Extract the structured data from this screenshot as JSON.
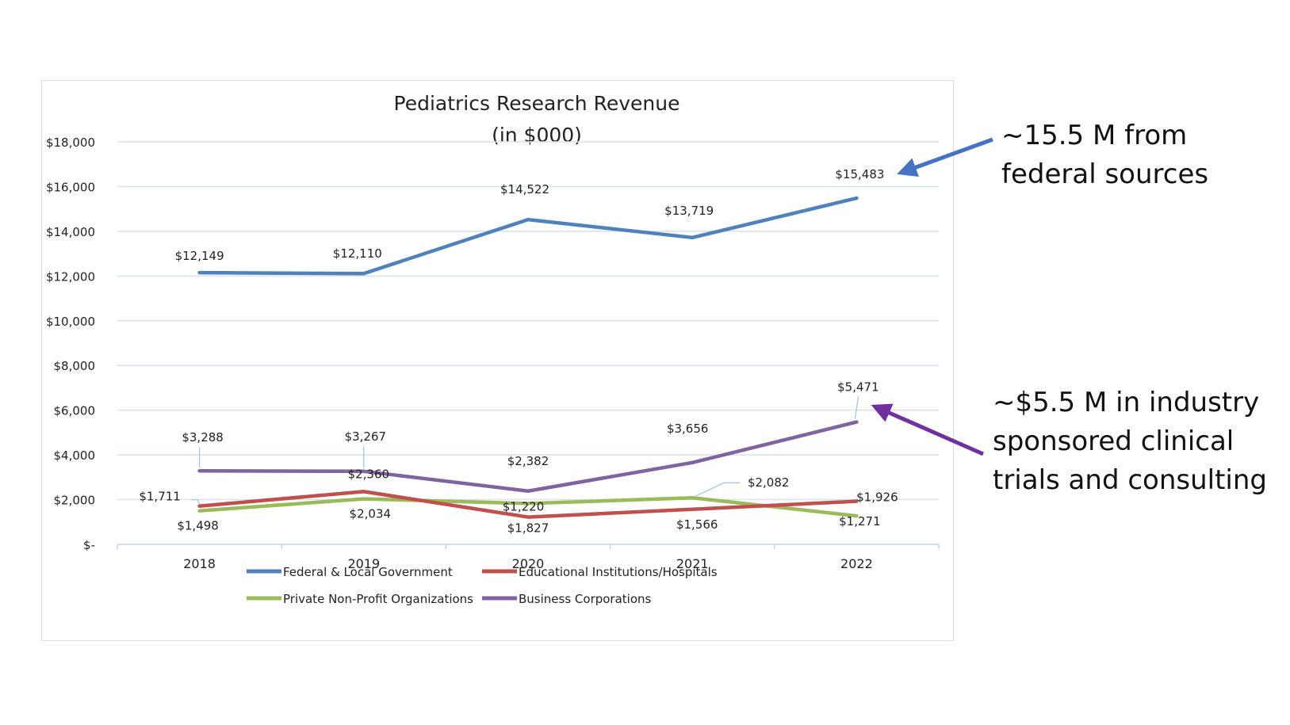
{
  "chart_data": {
    "type": "line",
    "title": "Pediatrics Research Revenue",
    "subtitle": "(in $000)",
    "xlabel": "",
    "ylabel": "",
    "categories": [
      "2018",
      "2019",
      "2020",
      "2021",
      "2022"
    ],
    "ylim": [
      0,
      18000
    ],
    "y_ticks": [
      0,
      2000,
      4000,
      6000,
      8000,
      10000,
      12000,
      14000,
      16000,
      18000
    ],
    "y_tick_labels": [
      "$-",
      "$2,000",
      "$4,000",
      "$6,000",
      "$8,000",
      "$10,000",
      "$12,000",
      "$14,000",
      "$16,000",
      "$18,000"
    ],
    "grid": true,
    "legend_position": "bottom",
    "series": [
      {
        "name": "Federal & Local Government",
        "color": "#4f81bd",
        "values": [
          12149,
          12110,
          14522,
          13719,
          15483
        ],
        "labels": [
          "$12,149",
          "$12,110",
          "$14,522",
          "$13,719",
          "$15,483"
        ]
      },
      {
        "name": "Educational Institutions/Hospitals",
        "color": "#c0504d",
        "values": [
          1711,
          2360,
          1220,
          1566,
          1926
        ],
        "labels": [
          "$1,711",
          "$2,360",
          "$1,220",
          "$1,566",
          "$1,926"
        ]
      },
      {
        "name": "Private Non-Profit Organizations",
        "color": "#9bbb59",
        "values": [
          1498,
          2034,
          1827,
          2082,
          1271
        ],
        "labels": [
          "$1,498",
          "$2,034",
          "$1,827",
          "$2,082",
          "$1,271"
        ]
      },
      {
        "name": "Business Corporations",
        "color": "#8064a2",
        "values": [
          3288,
          3267,
          2382,
          3656,
          5471
        ],
        "labels": [
          "$3,288",
          "$3,267",
          "$2,382",
          "$3,656",
          "$5,471"
        ]
      }
    ]
  },
  "callouts": {
    "federal": "~15.5 M from\nfederal sources",
    "industry": "~$5.5 M in industry\nsponsored clinical\ntrials and consulting"
  },
  "colors": {
    "arrow_federal": "#4472c4",
    "arrow_industry": "#7030a0",
    "gridline": "#d9e1ec",
    "text": "#222222"
  }
}
